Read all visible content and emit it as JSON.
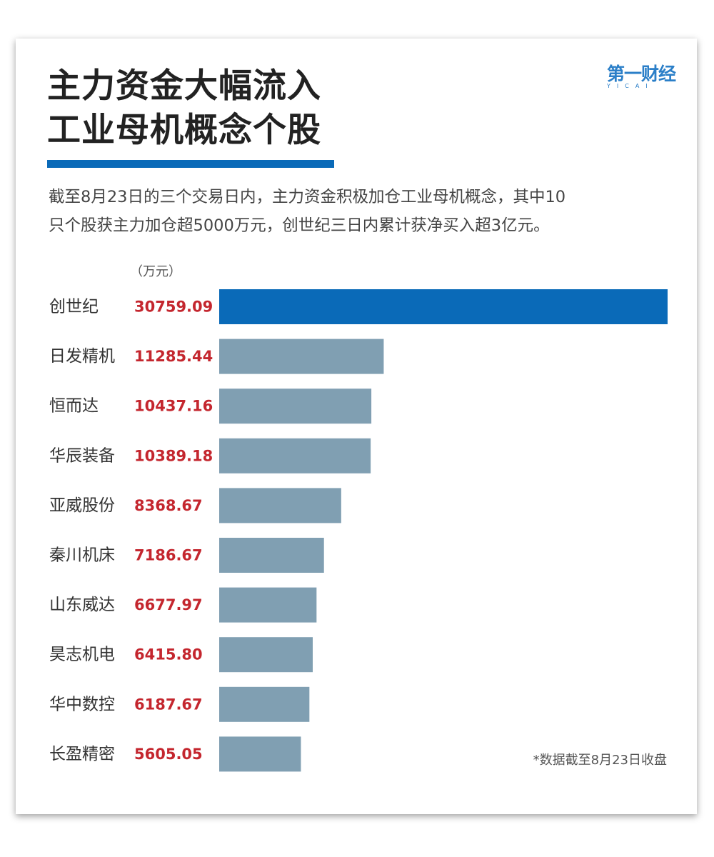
{
  "header": {
    "title_line1": "主力资金大幅流入",
    "title_line2": "工业母机概念个股",
    "logo_cn": "第一财经",
    "logo_en": "YICAI"
  },
  "description": {
    "line1": "截至8月23日的三个交易日内，主力资金积极加仓工业母机概念，其中10",
    "line2": "只个股获主力加仓超5000万元，创世纪三日内累计获净买入超3亿元。"
  },
  "chart_data": {
    "type": "bar",
    "orientation": "horizontal",
    "unit_label": "（万元）",
    "categories": [
      "创世纪",
      "日发精机",
      "恒而达",
      "华辰装备",
      "亚威股份",
      "秦川机床",
      "山东威达",
      "昊志机电",
      "华中数控",
      "长盈精密"
    ],
    "value_labels": [
      "30759.09",
      "11285.44",
      "10437.16",
      "10389.18",
      "8368.67",
      "7186.67",
      "6677.97",
      "6415.80",
      "6187.67",
      "5605.05"
    ],
    "values": [
      30759.09,
      11285.44,
      10437.16,
      10389.18,
      8368.67,
      7186.67,
      6677.97,
      6415.8,
      6187.67,
      5605.05
    ],
    "highlight_index": 0,
    "colors": {
      "highlight_bar": "#0a6ab8",
      "bar": "#809fb2",
      "value_text": "#c4262e",
      "category_text": "#333333"
    }
  },
  "footnote": "*数据截至8月23日收盘"
}
